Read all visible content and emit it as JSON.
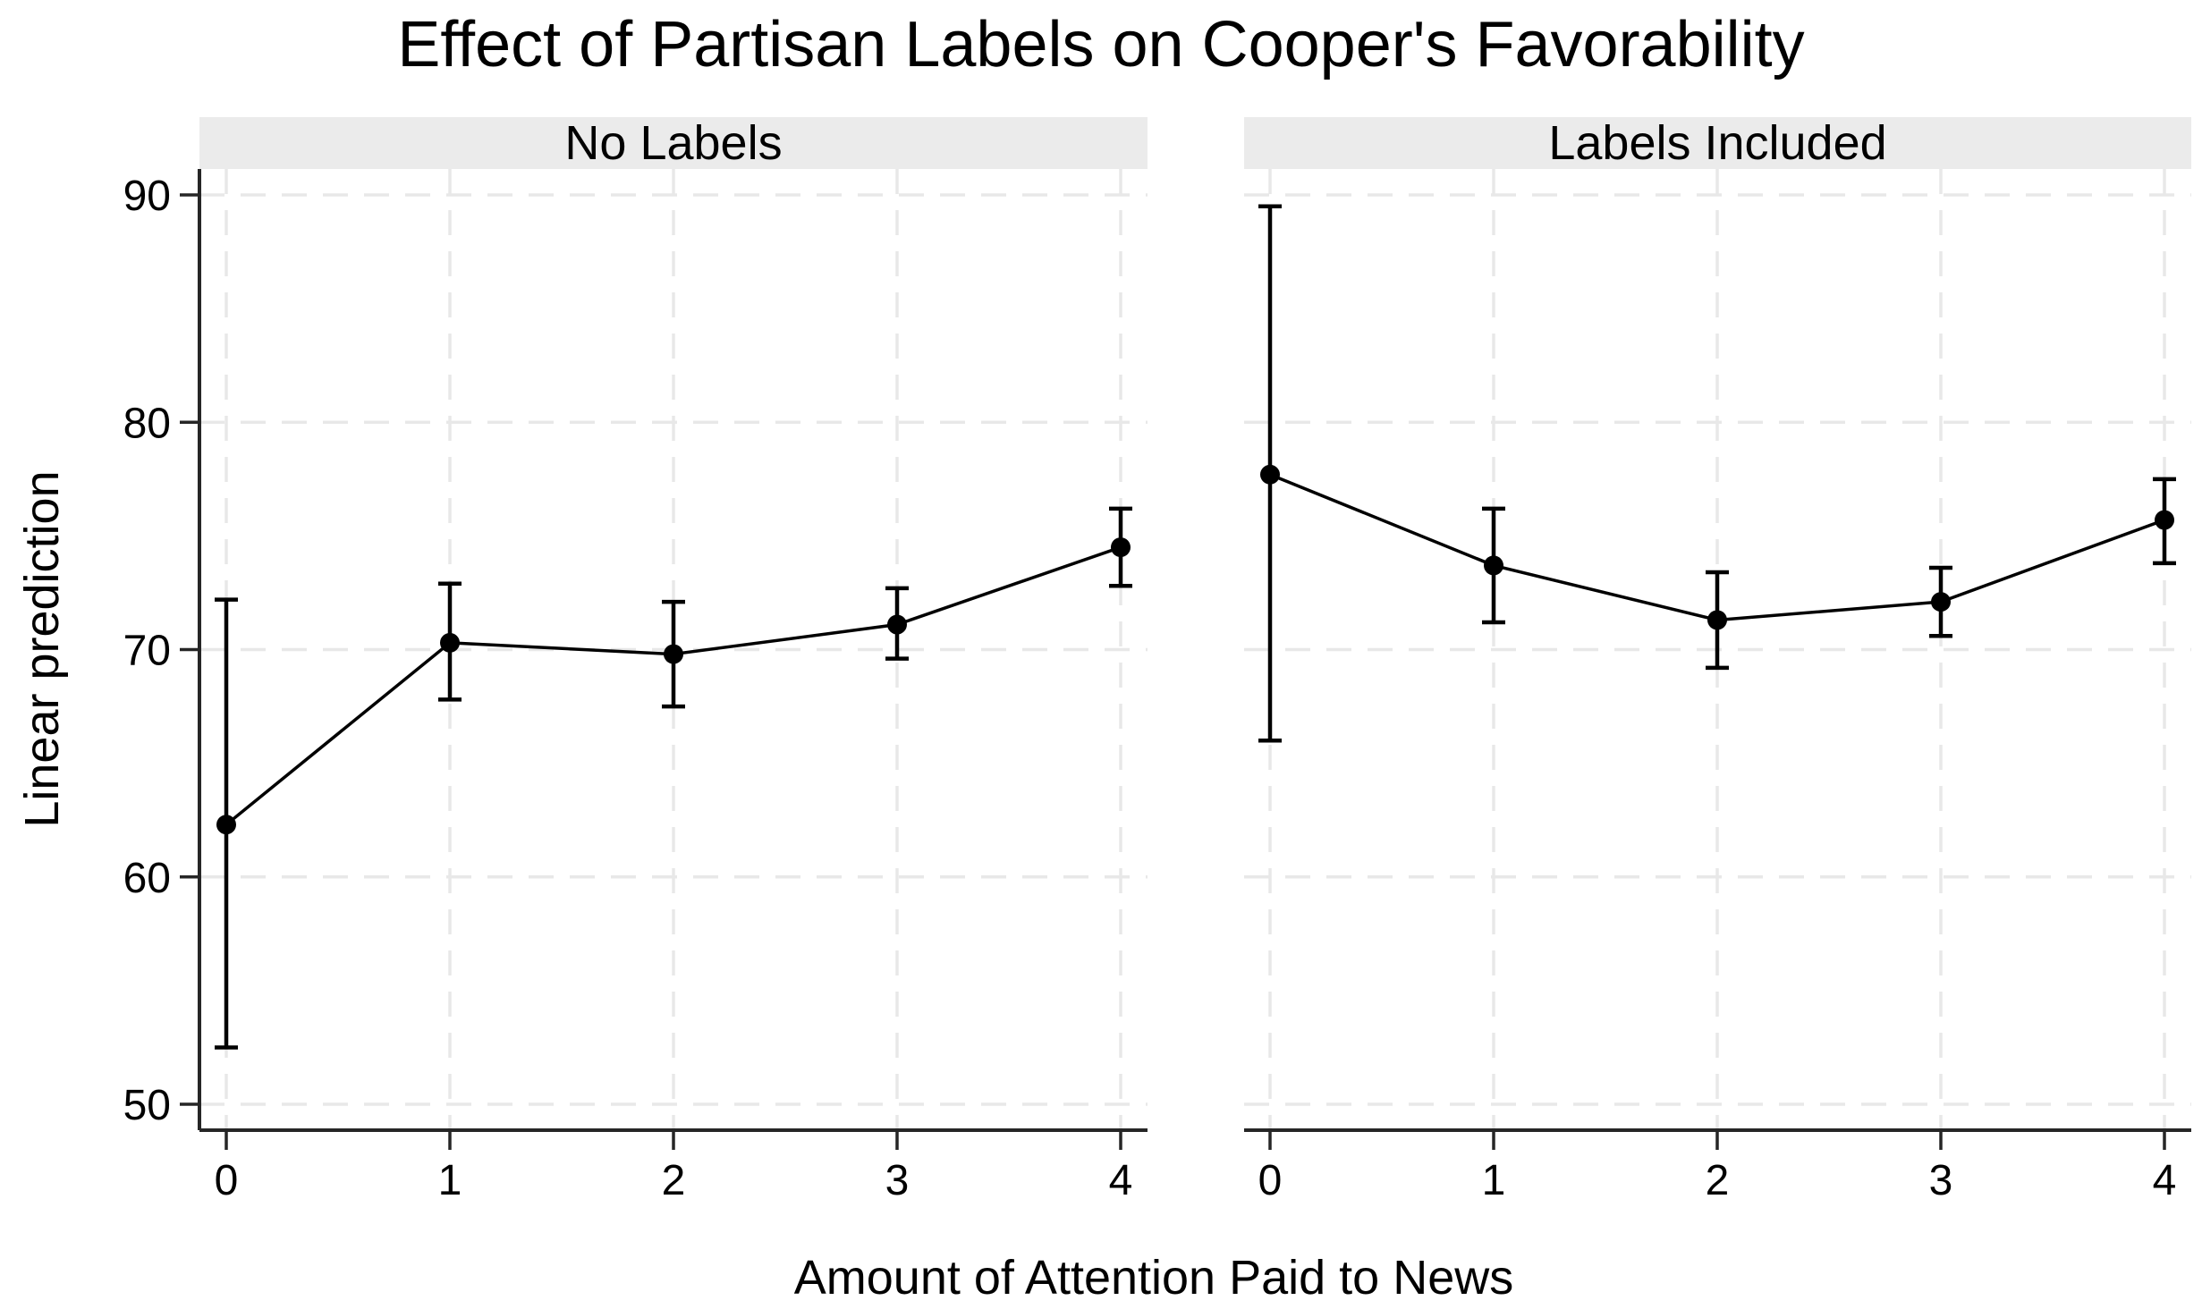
{
  "chart_data": {
    "type": "line",
    "title": "Effect of Partisan Labels on Cooper's Favorability",
    "xlabel": "Amount of Attention Paid to News",
    "ylabel": "Linear prediction",
    "x": [
      0,
      1,
      2,
      3,
      4
    ],
    "x_tick_labels": [
      "0",
      "1",
      "2",
      "3",
      "4"
    ],
    "y_ticks": [
      50,
      60,
      70,
      80,
      90
    ],
    "y_tick_labels": [
      "50",
      "60",
      "70",
      "80",
      "90"
    ],
    "ylim": [
      48.9,
      91.1
    ],
    "grid": "dashed-both-axes",
    "legend": "none",
    "marker": "filled-circle",
    "error_bars": "95%-confidence-interval-caps",
    "panels": [
      {
        "label": "No Labels",
        "series": [
          {
            "name": "Linear prediction",
            "x": [
              0,
              1,
              2,
              3,
              4
            ],
            "estimate": [
              62.3,
              70.3,
              69.8,
              71.1,
              74.5
            ],
            "ci_low": [
              52.5,
              67.8,
              67.5,
              69.6,
              72.8
            ],
            "ci_high": [
              72.2,
              72.9,
              72.1,
              72.7,
              76.2
            ]
          }
        ]
      },
      {
        "label": "Labels Included",
        "series": [
          {
            "name": "Linear prediction",
            "x": [
              0,
              1,
              2,
              3,
              4
            ],
            "estimate": [
              77.7,
              73.7,
              71.3,
              72.1,
              75.7
            ],
            "ci_low": [
              66.0,
              71.2,
              69.2,
              70.6,
              73.8
            ],
            "ci_high": [
              89.5,
              76.2,
              73.4,
              73.6,
              77.5
            ]
          }
        ]
      }
    ],
    "colors": {
      "points": "#000000",
      "line": "#000000",
      "error_bars": "#000000",
      "grid": "#e8e8e8",
      "axis": "#262626",
      "strip_bg": "#ebebeb",
      "background": "#ffffff",
      "text": "#000000"
    }
  }
}
